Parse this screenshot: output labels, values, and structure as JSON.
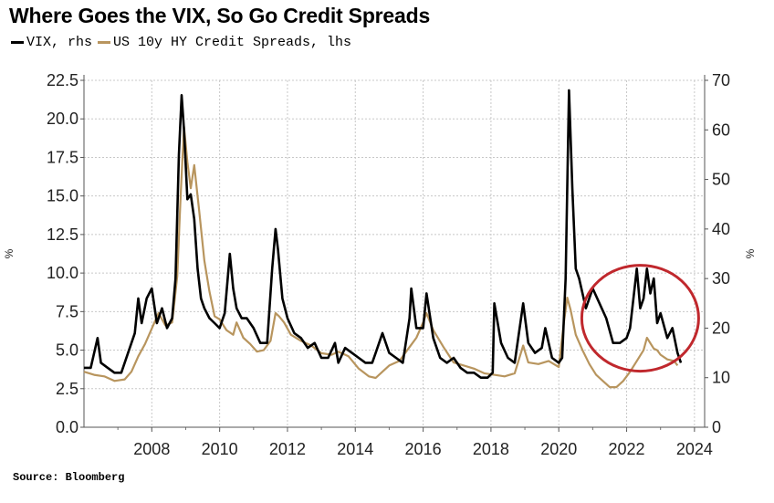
{
  "chart_data": {
    "type": "line",
    "title": "Where Goes the VIX, So Go Credit Spreads",
    "source": "Source: Bloomberg",
    "left_unit": "%",
    "right_unit": "%",
    "left_ylim": [
      0,
      22.5
    ],
    "right_ylim": [
      0,
      70
    ],
    "left_ticks": [
      "0.0",
      "2.5",
      "5.0",
      "7.5",
      "10.0",
      "12.5",
      "15.0",
      "17.5",
      "20.0",
      "22.5"
    ],
    "right_ticks": [
      "0",
      "10",
      "20",
      "30",
      "40",
      "50",
      "60",
      "70"
    ],
    "x_ticks": [
      "2008",
      "2010",
      "2012",
      "2014",
      "2016",
      "2018",
      "2020",
      "2022",
      "2024"
    ],
    "xlim": [
      2006.0,
      2024.3
    ],
    "grid": true,
    "annotation": {
      "type": "ellipse",
      "color": "#c0282d",
      "center": [
        2022.4,
        22.0
      ],
      "axis": "rhs"
    },
    "series": [
      {
        "name": "VIX, rhs",
        "axis": "right",
        "color": "#000000",
        "x": [
          2006.0,
          2006.2,
          2006.4,
          2006.5,
          2006.7,
          2006.9,
          2007.1,
          2007.3,
          2007.5,
          2007.6,
          2007.7,
          2007.85,
          2008.0,
          2008.15,
          2008.3,
          2008.45,
          2008.6,
          2008.7,
          2008.8,
          2008.88,
          2008.95,
          2009.05,
          2009.15,
          2009.25,
          2009.35,
          2009.45,
          2009.55,
          2009.7,
          2009.85,
          2010.0,
          2010.15,
          2010.3,
          2010.4,
          2010.5,
          2010.65,
          2010.8,
          2011.0,
          2011.2,
          2011.4,
          2011.55,
          2011.65,
          2011.72,
          2011.85,
          2012.0,
          2012.2,
          2012.4,
          2012.6,
          2012.8,
          2013.0,
          2013.2,
          2013.4,
          2013.5,
          2013.7,
          2013.9,
          2014.1,
          2014.3,
          2014.5,
          2014.6,
          2014.8,
          2015.0,
          2015.2,
          2015.4,
          2015.6,
          2015.65,
          2015.8,
          2016.0,
          2016.1,
          2016.3,
          2016.5,
          2016.7,
          2016.9,
          2017.1,
          2017.3,
          2017.5,
          2017.7,
          2017.9,
          2018.05,
          2018.1,
          2018.3,
          2018.5,
          2018.7,
          2018.95,
          2019.1,
          2019.3,
          2019.5,
          2019.6,
          2019.8,
          2020.0,
          2020.1,
          2020.2,
          2020.3,
          2020.4,
          2020.5,
          2020.6,
          2020.8,
          2021.0,
          2021.2,
          2021.4,
          2021.6,
          2021.8,
          2022.0,
          2022.1,
          2022.2,
          2022.3,
          2022.4,
          2022.5,
          2022.6,
          2022.7,
          2022.8,
          2022.9,
          2023.0,
          2023.2,
          2023.35,
          2023.5,
          2023.6
        ],
        "values": [
          12,
          12,
          18,
          13,
          12,
          11,
          11,
          15,
          19,
          26,
          21,
          26,
          28,
          21,
          24,
          20,
          22,
          30,
          55,
          67,
          60,
          46,
          47,
          42,
          32,
          26,
          24,
          22,
          21,
          20,
          23,
          35,
          28,
          24,
          22,
          22,
          20,
          17,
          17,
          32,
          40,
          36,
          26,
          22,
          19,
          18,
          16,
          17,
          14,
          14,
          17,
          13,
          16,
          15,
          14,
          13,
          13,
          15,
          19,
          15,
          14,
          13,
          22,
          28,
          20,
          20,
          27,
          18,
          14,
          13,
          14,
          12,
          11,
          11,
          10,
          10,
          11,
          25,
          17,
          14,
          13,
          25,
          17,
          15,
          16,
          20,
          14,
          13,
          14,
          30,
          68,
          48,
          32,
          30,
          24,
          28,
          25,
          22,
          17,
          17,
          18,
          20,
          26,
          32,
          24,
          26,
          32,
          27,
          30,
          21,
          23,
          18,
          20,
          15,
          13
        ]
      },
      {
        "name": "US 10y HY Credit Spreads, lhs",
        "axis": "left",
        "color": "#b8955e",
        "x": [
          2006.0,
          2006.3,
          2006.6,
          2006.9,
          2007.2,
          2007.4,
          2007.6,
          2007.8,
          2008.0,
          2008.2,
          2008.4,
          2008.6,
          2008.75,
          2008.85,
          2008.95,
          2009.05,
          2009.15,
          2009.25,
          2009.4,
          2009.55,
          2009.7,
          2009.85,
          2010.0,
          2010.2,
          2010.4,
          2010.5,
          2010.7,
          2010.9,
          2011.1,
          2011.3,
          2011.5,
          2011.65,
          2011.75,
          2011.9,
          2012.1,
          2012.4,
          2012.7,
          2013.0,
          2013.3,
          2013.5,
          2013.8,
          2014.1,
          2014.4,
          2014.6,
          2014.8,
          2015.0,
          2015.3,
          2015.6,
          2015.8,
          2016.0,
          2016.1,
          2016.3,
          2016.6,
          2016.9,
          2017.2,
          2017.5,
          2017.8,
          2018.1,
          2018.4,
          2018.7,
          2018.95,
          2019.1,
          2019.4,
          2019.7,
          2020.0,
          2020.15,
          2020.25,
          2020.35,
          2020.5,
          2020.7,
          2020.9,
          2021.1,
          2021.3,
          2021.5,
          2021.7,
          2021.9,
          2022.1,
          2022.3,
          2022.5,
          2022.6,
          2022.8,
          2022.9,
          2023.0,
          2023.2,
          2023.4,
          2023.5
        ],
        "values": [
          3.6,
          3.4,
          3.3,
          3.0,
          3.1,
          3.6,
          4.6,
          5.4,
          6.4,
          7.4,
          6.6,
          6.8,
          9.8,
          15.0,
          19.5,
          17.2,
          15.5,
          17.0,
          14.0,
          10.8,
          8.8,
          7.2,
          7.0,
          6.3,
          6.0,
          6.8,
          5.8,
          5.4,
          4.9,
          5.0,
          5.6,
          7.4,
          7.2,
          6.8,
          6.0,
          5.6,
          5.3,
          4.8,
          4.7,
          4.9,
          4.6,
          3.8,
          3.3,
          3.2,
          3.6,
          4.0,
          4.3,
          5.2,
          5.8,
          6.8,
          7.4,
          6.3,
          5.2,
          4.2,
          4.0,
          3.8,
          3.5,
          3.4,
          3.3,
          3.5,
          5.3,
          4.2,
          4.1,
          4.3,
          3.9,
          6.8,
          8.4,
          7.6,
          6.0,
          5.0,
          4.1,
          3.4,
          3.0,
          2.6,
          2.6,
          3.0,
          3.6,
          4.3,
          5.0,
          5.8,
          5.1,
          5.0,
          4.7,
          4.4,
          4.3,
          4.0
        ]
      }
    ]
  }
}
